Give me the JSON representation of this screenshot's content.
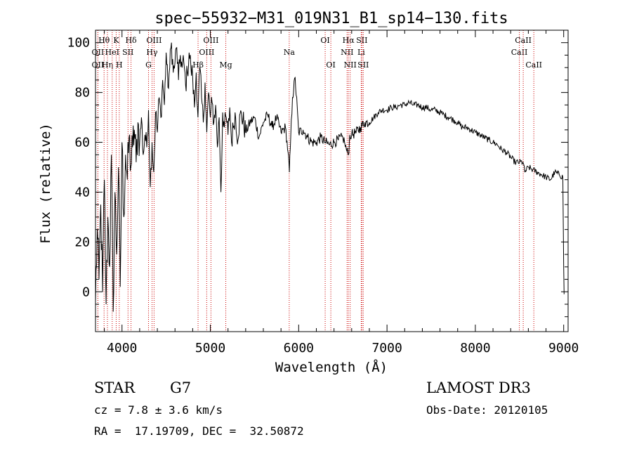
{
  "chart_data": {
    "type": "line",
    "title": "spec−55932−M31_019N31_B1_sp14−130.fits",
    "xlabel": "Wavelength (Å)",
    "ylabel": "Flux (relative)",
    "xlim": [
      3700,
      9050
    ],
    "ylim": [
      -16,
      105
    ],
    "xticks": [
      4000,
      5000,
      6000,
      7000,
      8000,
      9000
    ],
    "yticks": [
      0,
      20,
      40,
      60,
      80,
      100
    ],
    "series": [
      {
        "name": "spectrum",
        "x": [
          3700,
          3720,
          3740,
          3760,
          3780,
          3800,
          3820,
          3840,
          3860,
          3880,
          3900,
          3920,
          3940,
          3960,
          3980,
          4000,
          4020,
          4040,
          4060,
          4080,
          4100,
          4120,
          4140,
          4160,
          4180,
          4200,
          4220,
          4240,
          4260,
          4280,
          4300,
          4320,
          4340,
          4360,
          4380,
          4400,
          4420,
          4440,
          4460,
          4480,
          4500,
          4520,
          4540,
          4560,
          4580,
          4600,
          4620,
          4640,
          4660,
          4680,
          4700,
          4720,
          4740,
          4760,
          4780,
          4800,
          4820,
          4840,
          4860,
          4880,
          4900,
          4920,
          4940,
          4960,
          4980,
          5000,
          5020,
          5040,
          5060,
          5080,
          5100,
          5120,
          5140,
          5160,
          5180,
          5200,
          5220,
          5240,
          5260,
          5280,
          5300,
          5350,
          5400,
          5450,
          5500,
          5550,
          5600,
          5650,
          5700,
          5750,
          5800,
          5850,
          5880,
          5895,
          5910,
          5930,
          5960,
          6000,
          6050,
          6100,
          6150,
          6200,
          6250,
          6300,
          6350,
          6400,
          6450,
          6500,
          6520,
          6540,
          6563,
          6580,
          6600,
          6650,
          6700,
          6750,
          6800,
          6850,
          6900,
          6950,
          7000,
          7050,
          7100,
          7150,
          7200,
          7250,
          7300,
          7350,
          7400,
          7450,
          7500,
          7550,
          7600,
          7650,
          7700,
          7750,
          7800,
          7850,
          7900,
          7950,
          8000,
          8050,
          8100,
          8150,
          8200,
          8250,
          8300,
          8350,
          8400,
          8450,
          8500,
          8540,
          8560,
          8600,
          8650,
          8700,
          8750,
          8800,
          8850,
          8900,
          8950,
          8990,
          9000,
          9005
        ],
        "y": [
          -4,
          25,
          5,
          35,
          0,
          45,
          -5,
          30,
          10,
          55,
          -8,
          40,
          15,
          50,
          2,
          60,
          30,
          55,
          45,
          62,
          50,
          58,
          65,
          52,
          68,
          60,
          70,
          55,
          63,
          58,
          73,
          42,
          60,
          48,
          72,
          64,
          78,
          70,
          85,
          75,
          96,
          82,
          90,
          100,
          88,
          92,
          98,
          85,
          95,
          90,
          92,
          83,
          88,
          96,
          90,
          86,
          74,
          88,
          70,
          90,
          78,
          68,
          84,
          64,
          80,
          70,
          76,
          68,
          75,
          58,
          70,
          40,
          72,
          66,
          70,
          63,
          74,
          60,
          66,
          72,
          62,
          72,
          64,
          68,
          70,
          62,
          68,
          71,
          66,
          70,
          64,
          66,
          56,
          48,
          62,
          78,
          86,
          64,
          65,
          62,
          60,
          60,
          62,
          60,
          59,
          60,
          61,
          62,
          60,
          57,
          55,
          63,
          63,
          64,
          66,
          68,
          68,
          70,
          72,
          73,
          73,
          74,
          74,
          75,
          75,
          76,
          75,
          75,
          74,
          74,
          73,
          73,
          72,
          71,
          70,
          69,
          68,
          66,
          66,
          65,
          64,
          63,
          62,
          61,
          60,
          59,
          57,
          56,
          54,
          52,
          52,
          52,
          48,
          50,
          49,
          48,
          47,
          46,
          45,
          48,
          47,
          46,
          10,
          -1
        ]
      }
    ],
    "lines": [
      {
        "wl": 3797,
        "label": "Hθ",
        "row": 1
      },
      {
        "wl": 3727,
        "label": "OII",
        "row": 2
      },
      {
        "wl": 3727,
        "label": "OII",
        "row": 3
      },
      {
        "wl": 3835,
        "label": "Hη",
        "row": 3
      },
      {
        "wl": 3889,
        "label": "HeI",
        "row": 2
      },
      {
        "wl": 3934,
        "label": "K",
        "row": 1
      },
      {
        "wl": 3969,
        "label": "H",
        "row": 3
      },
      {
        "wl": 4068,
        "label": "SII",
        "row": 2
      },
      {
        "wl": 4102,
        "label": "Hδ",
        "row": 1
      },
      {
        "wl": 4300,
        "label": "G",
        "row": 3
      },
      {
        "wl": 4340,
        "label": "Hγ",
        "row": 2
      },
      {
        "wl": 4363,
        "label": "OIII",
        "row": 1
      },
      {
        "wl": 4861,
        "label": "Hβ",
        "row": 3
      },
      {
        "wl": 4959,
        "label": "OIII",
        "row": 2
      },
      {
        "wl": 5007,
        "label": "OIII",
        "row": 1
      },
      {
        "wl": 5175,
        "label": "Mg",
        "row": 3
      },
      {
        "wl": 5893,
        "label": "Na",
        "row": 2
      },
      {
        "wl": 6300,
        "label": "OI",
        "row": 1
      },
      {
        "wl": 6364,
        "label": "OI",
        "row": 3
      },
      {
        "wl": 6548,
        "label": "NII",
        "row": 2
      },
      {
        "wl": 6563,
        "label": "Hα",
        "row": 1
      },
      {
        "wl": 6583,
        "label": "NII",
        "row": 3
      },
      {
        "wl": 6708,
        "label": "Li",
        "row": 2
      },
      {
        "wl": 6716,
        "label": "SII",
        "row": 1
      },
      {
        "wl": 6731,
        "label": "SII",
        "row": 3
      },
      {
        "wl": 8498,
        "label": "CaII",
        "row": 2
      },
      {
        "wl": 8542,
        "label": "CaII",
        "row": 1
      },
      {
        "wl": 8662,
        "label": "CaII",
        "row": 3
      }
    ]
  },
  "info": {
    "class": "STAR",
    "subclass": "G7",
    "survey": "LAMOST DR3",
    "cz": "cz = 7.8 ± 3.6 km/s",
    "obs_date": "Obs-Date: 20120105",
    "radec": "RA =  17.19709, DEC =  32.50872"
  }
}
